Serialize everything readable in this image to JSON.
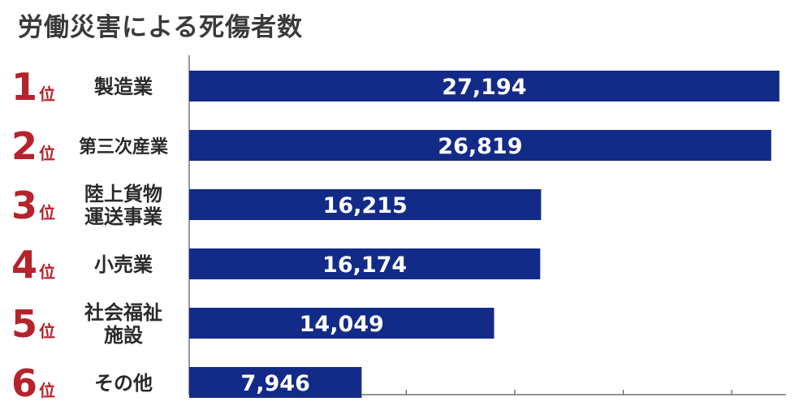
{
  "chart_data": {
    "type": "bar",
    "orientation": "horizontal",
    "title": "労働災害による死傷者数",
    "rank_suffix": "位",
    "categories": [
      "製造業",
      "第三次産業",
      "陸上貨物\n運送事業",
      "小売業",
      "社会福祉\n施設",
      "その他"
    ],
    "ranks": [
      "1",
      "2",
      "3",
      "4",
      "5",
      "6"
    ],
    "values": [
      27194,
      26819,
      16215,
      16174,
      14049,
      7946
    ],
    "value_labels": [
      "27,194",
      "26,819",
      "16,215",
      "16,174",
      "14,049",
      "7,946"
    ],
    "xlim": [
      0,
      27500
    ],
    "grid": false,
    "legend": "none",
    "colors": {
      "bar": "#132b88",
      "rank": "#b5232b",
      "axis": "#555555"
    }
  }
}
